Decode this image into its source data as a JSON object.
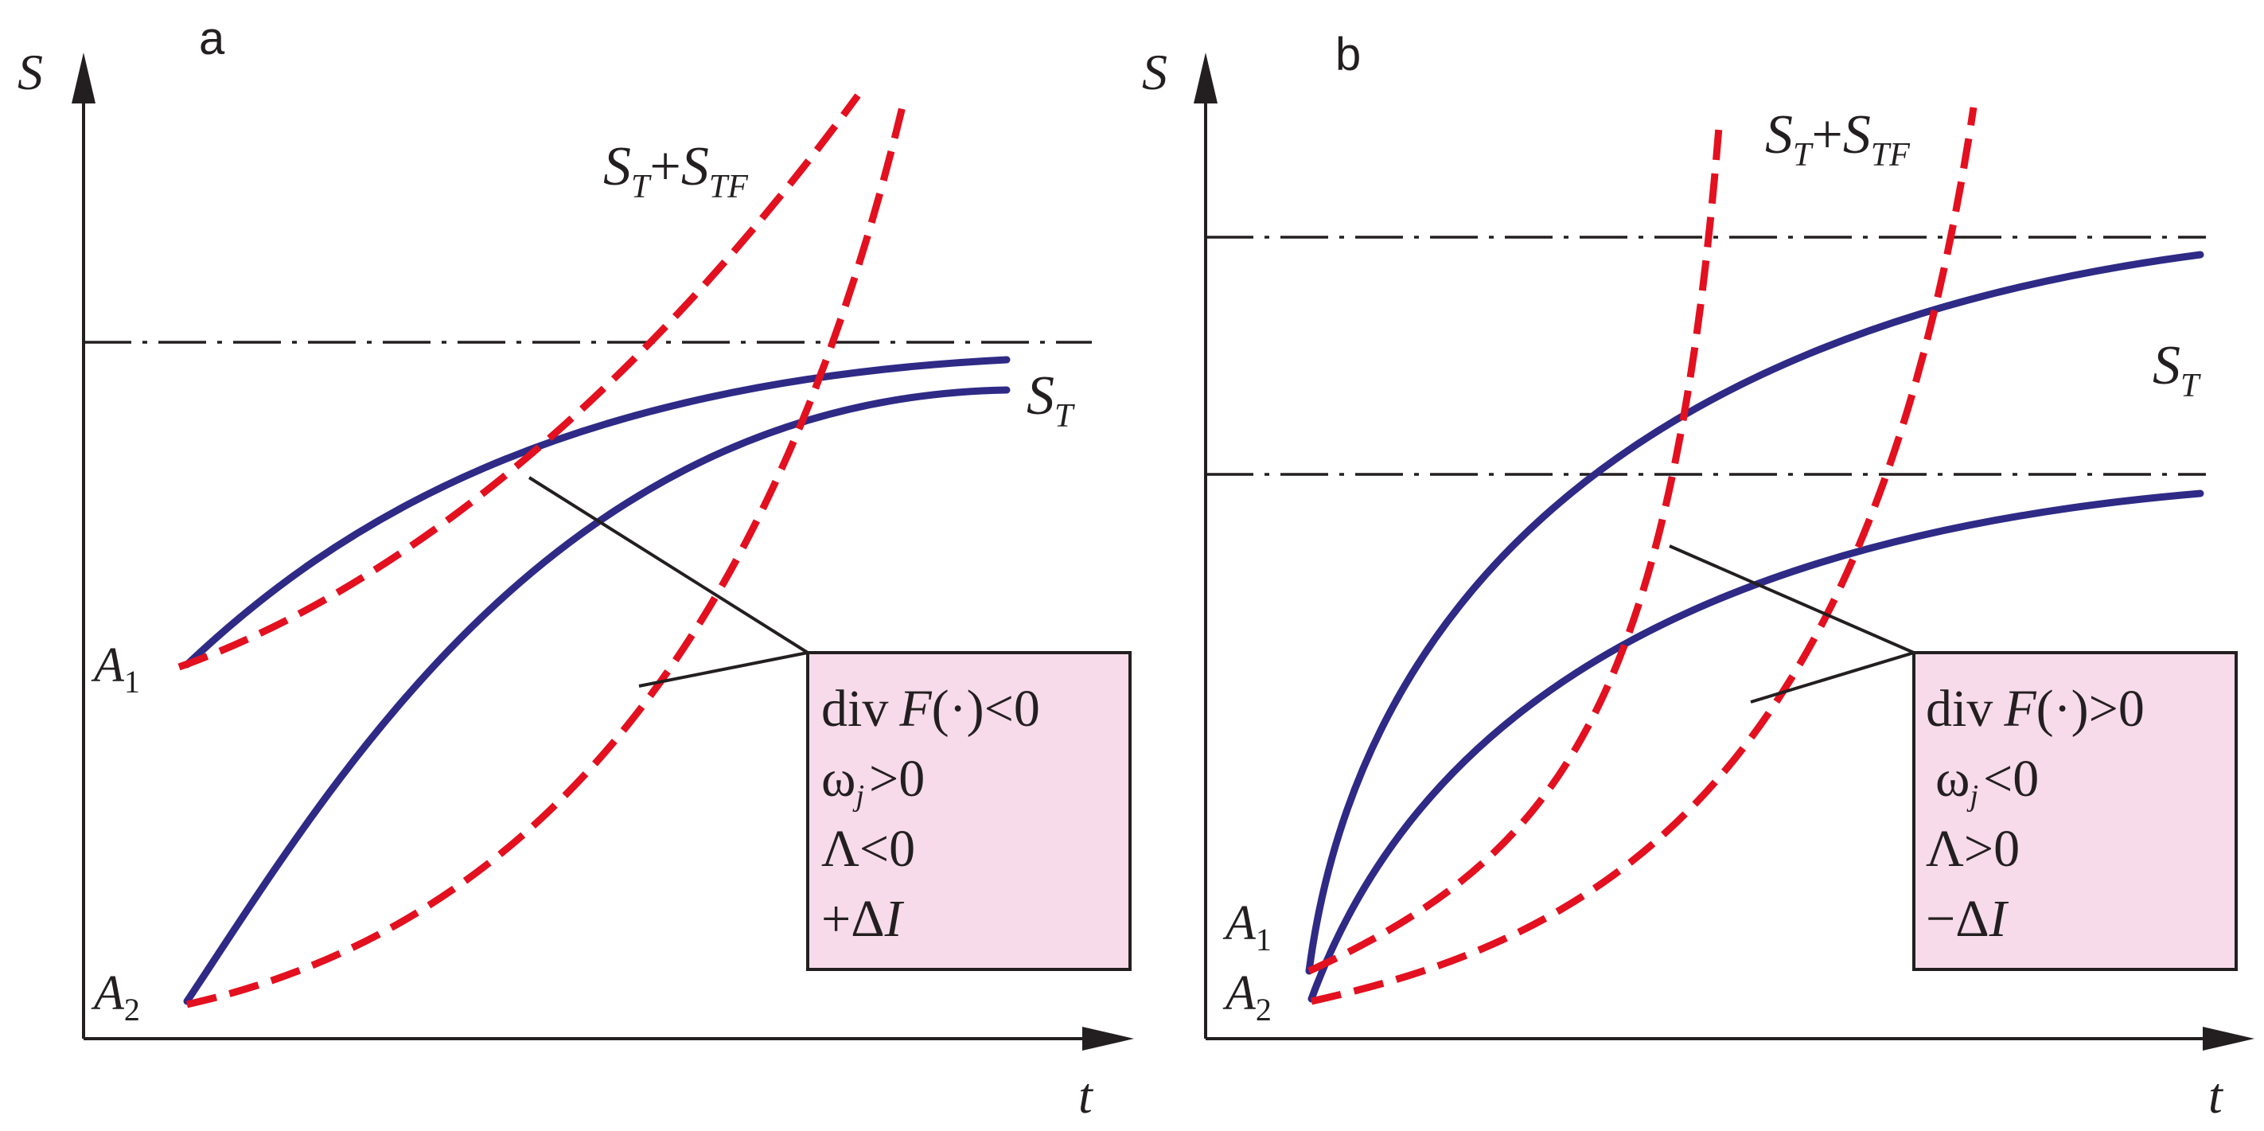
{
  "panels": [
    {
      "panel_label": "a",
      "y_axis_label": "S",
      "x_axis_label": "t",
      "curve_labels": {
        "sum": {
          "base": "S",
          "sub1": "T",
          "plus": "+",
          "base2": "S",
          "sub2": "TF"
        },
        "single": {
          "base": "S",
          "sub": "T"
        }
      },
      "start_labels": [
        {
          "base": "A",
          "sub": "1"
        },
        {
          "base": "A",
          "sub": "2"
        }
      ],
      "conditions": {
        "div_prefix": "div",
        "F": "F",
        "arg": "(·)",
        "div_rel": "<0",
        "omega": "ω",
        "omega_sub": "j",
        "omega_rel": ">0",
        "lambda": "Λ<0",
        "delta": "+Δ",
        "delta_I": "I"
      }
    },
    {
      "panel_label": "b",
      "y_axis_label": "S",
      "x_axis_label": "t",
      "curve_labels": {
        "sum": {
          "base": "S",
          "sub1": "T",
          "plus": "+",
          "base2": "S",
          "sub2": "TF"
        },
        "single": {
          "base": "S",
          "sub": "T"
        }
      },
      "start_labels": [
        {
          "base": "A",
          "sub": "1"
        },
        {
          "base": "A",
          "sub": "2"
        }
      ],
      "conditions": {
        "div_prefix": "div",
        "F": "F",
        "arg": "(·)",
        "div_rel": ">0",
        "omega": "ω",
        "omega_sub": "j",
        "omega_rel": "<0",
        "lambda": "Λ>0",
        "delta": "−Δ",
        "delta_I": "I"
      }
    }
  ],
  "colors": {
    "solid_curve": "#2e2a86",
    "dashed_curve": "#e3101f",
    "box_fill": "#f7dbea",
    "axes": "#231f20"
  }
}
